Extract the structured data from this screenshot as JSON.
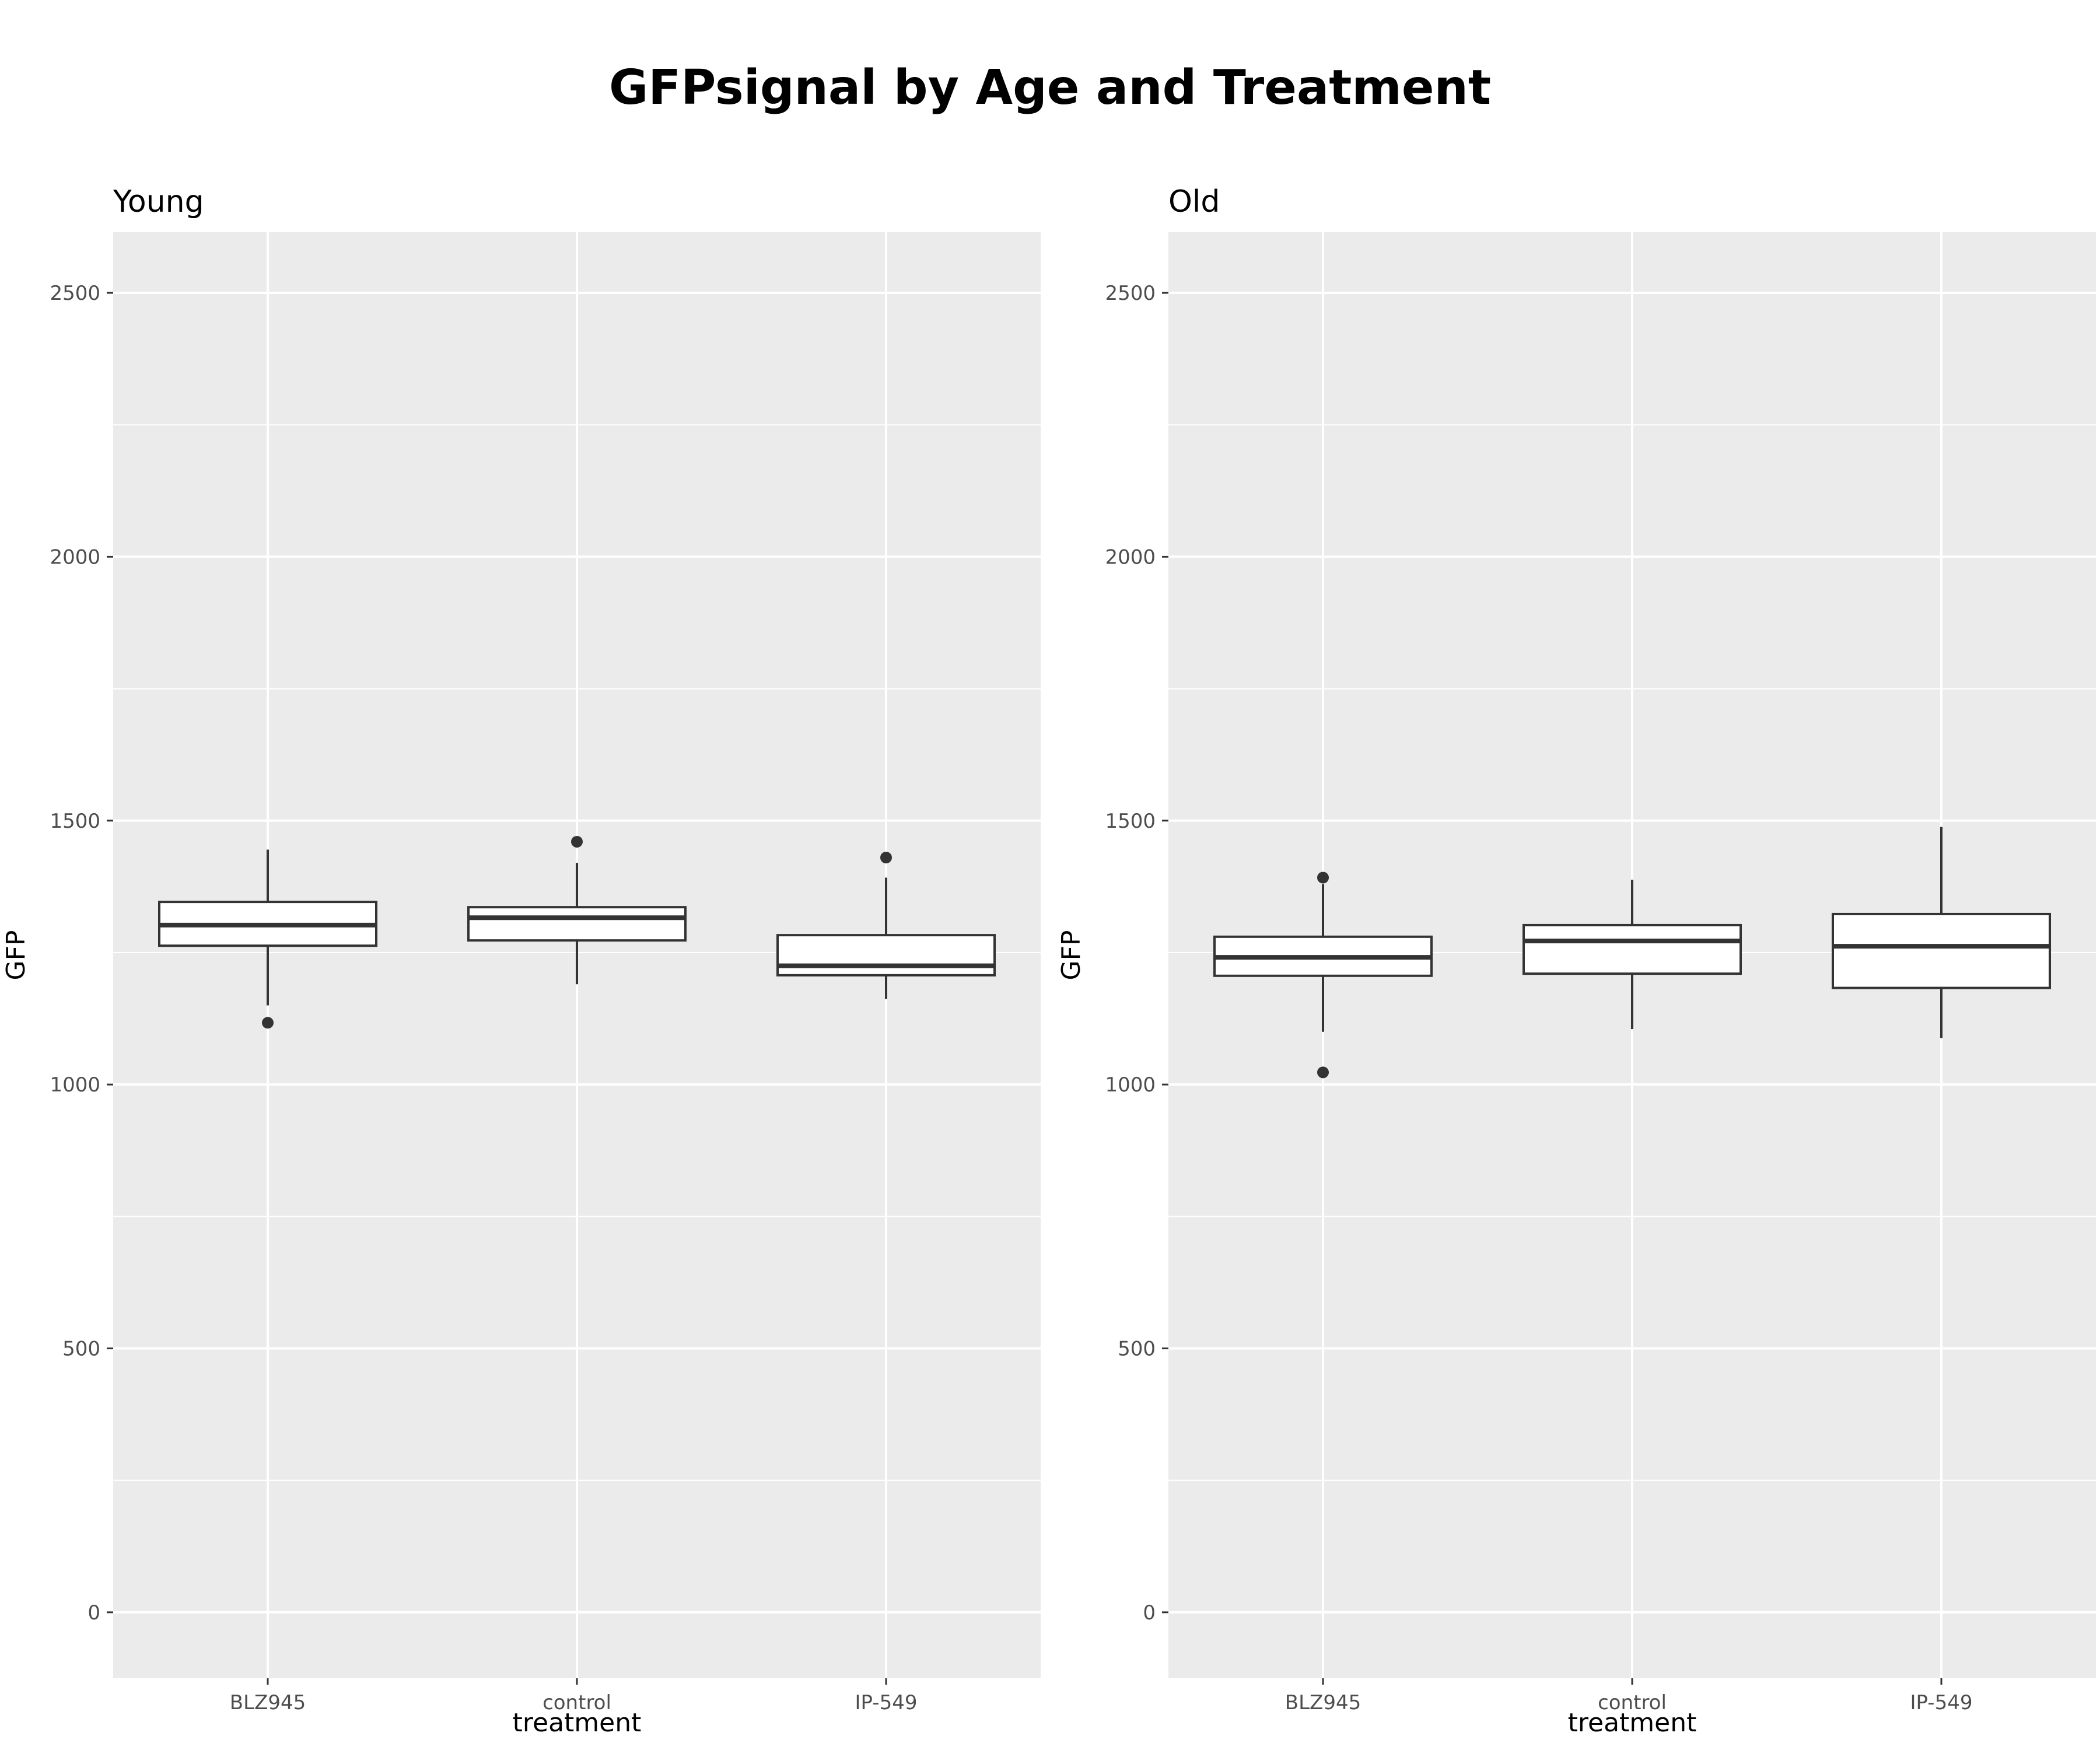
{
  "chart_data": {
    "type": "boxplot",
    "title": "GFPsignal by Age and Treatment",
    "xlabel": "treatment",
    "ylabel": "GFP",
    "ylim": [
      -125,
      2615
    ],
    "yticks": [
      0,
      500,
      1000,
      1500,
      2000,
      2500
    ],
    "categories": [
      "BLZ945",
      "control",
      "IP-549"
    ],
    "grid": true,
    "colors": {
      "panel_background": "#ebebeb",
      "grid": "#ffffff",
      "box_fill": "#ffffff",
      "box_stroke": "#333333",
      "outlier": "#333333",
      "text": "#000000",
      "tick_text": "#4d4d4d"
    },
    "facets": [
      {
        "label": "Young",
        "boxes": [
          {
            "category": "BLZ945",
            "whisker_low": 1150,
            "q1": 1263,
            "median": 1302,
            "q3": 1346,
            "whisker_high": 1445,
            "outliers": [
              1117
            ]
          },
          {
            "category": "control",
            "whisker_low": 1190,
            "q1": 1273,
            "median": 1316,
            "q3": 1336,
            "whisker_high": 1420,
            "outliers": [
              1460
            ]
          },
          {
            "category": "IP-549",
            "whisker_low": 1162,
            "q1": 1207,
            "median": 1225,
            "q3": 1283,
            "whisker_high": 1392,
            "outliers": [
              1430
            ]
          }
        ]
      },
      {
        "label": "Old",
        "boxes": [
          {
            "category": "BLZ945",
            "whisker_low": 1100,
            "q1": 1206,
            "median": 1241,
            "q3": 1280,
            "whisker_high": 1380,
            "outliers": [
              1392,
              1023
            ]
          },
          {
            "category": "control",
            "whisker_low": 1105,
            "q1": 1210,
            "median": 1272,
            "q3": 1302,
            "whisker_high": 1388,
            "outliers": []
          },
          {
            "category": "IP-549",
            "whisker_low": 1088,
            "q1": 1183,
            "median": 1262,
            "q3": 1323,
            "whisker_high": 1488,
            "outliers": []
          }
        ]
      }
    ]
  }
}
